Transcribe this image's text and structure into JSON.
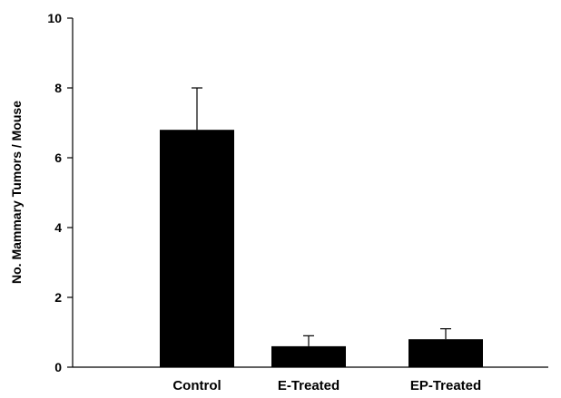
{
  "chart_data": {
    "type": "bar",
    "title": "",
    "xlabel": "",
    "ylabel": "No. Mammary Tumors / Mouse",
    "categories": [
      "Control",
      "E-Treated",
      "EP-Treated"
    ],
    "values": [
      6.8,
      0.6,
      0.8
    ],
    "error_upper": [
      1.2,
      0.3,
      0.3
    ],
    "ylim": [
      0,
      10
    ],
    "yticks": [
      0,
      2,
      4,
      6,
      8,
      10
    ],
    "ytick_labels": [
      "0",
      "2",
      "4",
      "6",
      "8",
      "10"
    ],
    "grid": false,
    "legend": "none",
    "bar_color": "#000000",
    "axis_color": "#000000"
  }
}
